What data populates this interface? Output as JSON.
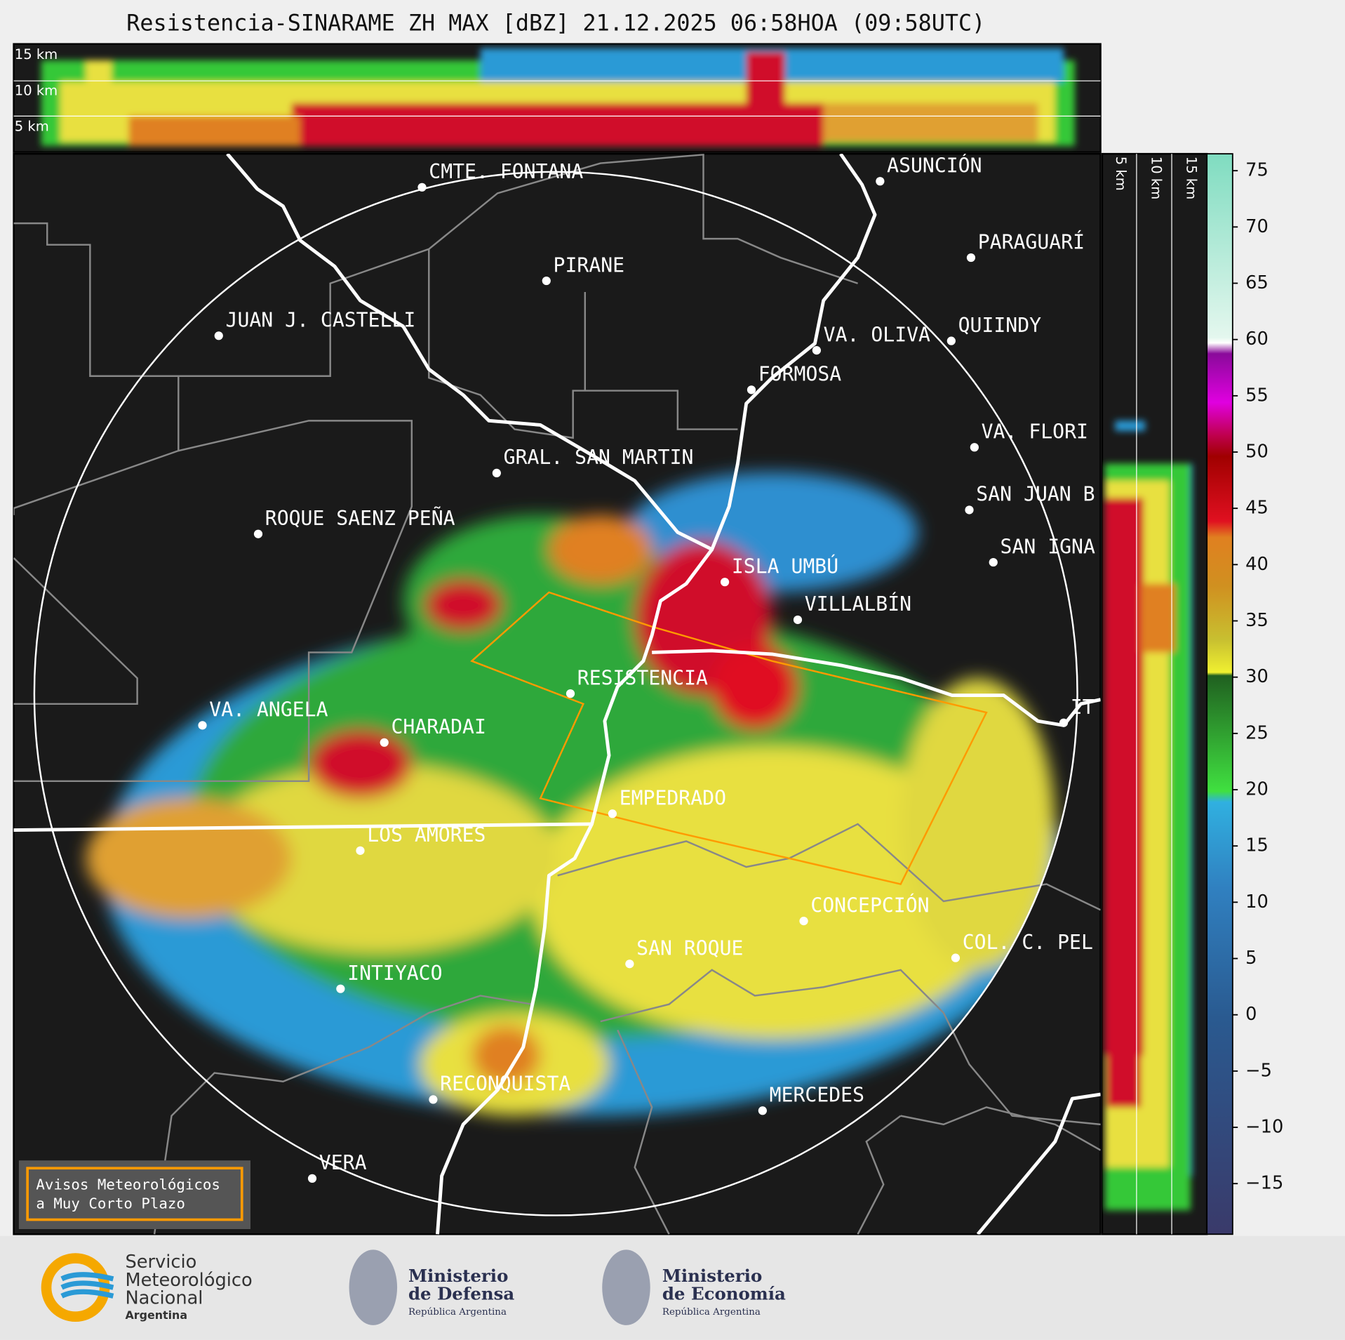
{
  "header": {
    "title": "Resistencia-SINARAME ZH MAX [dBZ] 21.12.2025 06:58HOA (09:58UTC)"
  },
  "cross_section_top": {
    "labels": [
      "15 km",
      "10 km",
      "5 km"
    ]
  },
  "cross_section_side": {
    "labels": [
      "5 km",
      "10 km",
      "15 km"
    ]
  },
  "map": {
    "places": [
      "CMTE. FONTANA",
      "PIRANE",
      "JUAN J. CASTELLI",
      "ASUNCIÓN",
      "PARAGUARÍ",
      "VA. OLIVA",
      "QUIINDY",
      "FORMOSA",
      "VA. FLORI",
      "GRAL. SAN MARTIN",
      "ROQUE SAENZ PEÑA",
      "ISLA UMBÚ",
      "VILLALBÍN",
      "SAN JUAN B",
      "SAN IGNA",
      "RESISTENCIA",
      "VA. ANGELA",
      "CHARADAI",
      "IT",
      "EMPEDRADO",
      "LOS AMORES",
      "CONCEPCIÓN",
      "SAN ROQUE",
      "COL. C. PEL",
      "INTIYACO",
      "RECONQUISTA",
      "MERCEDES",
      "VERA"
    ]
  },
  "notice": [
    "Avisos Meteorológicos",
    "a Muy Corto Plazo"
  ],
  "colorbar": {
    "lim": [
      -19.5,
      76.5
    ],
    "ticks": [
      75,
      70,
      65,
      60,
      55,
      50,
      45,
      40,
      35,
      30,
      25,
      20,
      15,
      10,
      5,
      0,
      {
        "value": -5,
        "label": "−5"
      },
      {
        "value": -10,
        "label": "−10"
      },
      {
        "value": -15,
        "label": "−15"
      }
    ]
  },
  "footer": {
    "smn": [
      "Servicio",
      "Meteorológico",
      "Nacional",
      "Argentina"
    ],
    "defensa": [
      "Ministerio",
      "de Defensa",
      "República Argentina"
    ],
    "economia": [
      "Ministerio",
      "de Economía",
      "República Argentina"
    ]
  }
}
